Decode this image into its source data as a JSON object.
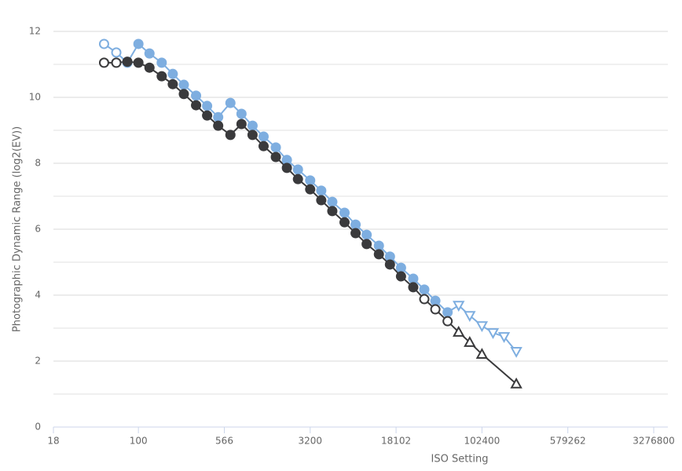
{
  "chart_data": {
    "type": "line",
    "x_label": "ISO Setting",
    "y_label": "Photographic Dynamic Range (log2(EV))",
    "x_log": true,
    "xlim": [
      18,
      3276800
    ],
    "xticks": [
      18,
      100,
      566,
      3200,
      18102,
      102400,
      579262,
      3276800
    ],
    "ylim": [
      0,
      12
    ],
    "yticks": [
      0,
      2,
      4,
      6,
      8,
      10,
      12
    ],
    "y_minor_grid": [
      1,
      3,
      5,
      7,
      9,
      11
    ],
    "grid": true,
    "series": [
      {
        "color": "#7eaee0",
        "x": [
          50,
          64,
          80,
          100,
          125,
          160,
          200,
          250,
          320,
          400,
          500,
          640,
          800,
          1000,
          1250,
          1600,
          2000,
          2500,
          3200,
          4000,
          5000,
          6400,
          8000,
          10000,
          12800,
          16000,
          20000,
          25600,
          32000,
          40000,
          51200,
          64000,
          80000,
          102400,
          128000,
          160000,
          204800
        ],
        "values": [
          11.62,
          11.36,
          11.05,
          11.62,
          11.33,
          11.05,
          10.71,
          10.38,
          10.05,
          9.74,
          9.4,
          9.83,
          9.5,
          9.14,
          8.81,
          8.48,
          8.1,
          7.81,
          7.48,
          7.17,
          6.83,
          6.5,
          6.14,
          5.83,
          5.5,
          5.17,
          4.83,
          4.5,
          4.17,
          3.83,
          3.48,
          3.69,
          3.38,
          3.07,
          2.86,
          2.74,
          2.29
        ],
        "markers": [
          "hollow-circle",
          "hollow-circle",
          "hollow-circle",
          "circle",
          "circle",
          "circle",
          "circle",
          "circle",
          "circle",
          "circle",
          "circle",
          "circle",
          "circle",
          "circle",
          "circle",
          "circle",
          "circle",
          "circle",
          "circle",
          "circle",
          "circle",
          "circle",
          "circle",
          "circle",
          "circle",
          "circle",
          "circle",
          "circle",
          "circle",
          "circle",
          "circle",
          "triangle-down",
          "triangle-down",
          "triangle-down",
          "triangle-down",
          "triangle-down",
          "triangle-down"
        ]
      },
      {
        "color": "#3a3a3c",
        "x": [
          50,
          64,
          80,
          100,
          125,
          160,
          200,
          250,
          320,
          400,
          500,
          640,
          800,
          1000,
          1250,
          1600,
          2000,
          2500,
          3200,
          4000,
          5000,
          6400,
          8000,
          10000,
          12800,
          16000,
          20000,
          25600,
          32000,
          40000,
          51200,
          64000,
          80000,
          102400,
          204800
        ],
        "values": [
          11.05,
          11.05,
          11.08,
          11.05,
          10.9,
          10.64,
          10.4,
          10.1,
          9.76,
          9.45,
          9.14,
          8.86,
          9.19,
          8.86,
          8.52,
          8.19,
          7.86,
          7.52,
          7.21,
          6.88,
          6.55,
          6.21,
          5.88,
          5.55,
          5.24,
          4.93,
          4.57,
          4.24,
          3.88,
          3.57,
          3.21,
          2.88,
          2.57,
          2.21,
          1.31
        ],
        "markers": [
          "hollow-circle",
          "hollow-circle",
          "circle",
          "circle",
          "circle",
          "circle",
          "circle",
          "circle",
          "circle",
          "circle",
          "circle",
          "circle",
          "circle",
          "circle",
          "circle",
          "circle",
          "circle",
          "circle",
          "circle",
          "circle",
          "circle",
          "circle",
          "circle",
          "circle",
          "circle",
          "circle",
          "circle",
          "circle",
          "hollow-circle",
          "hollow-circle",
          "hollow-circle",
          "triangle-up",
          "triangle-up",
          "triangle-up",
          "triangle-up"
        ]
      }
    ]
  }
}
